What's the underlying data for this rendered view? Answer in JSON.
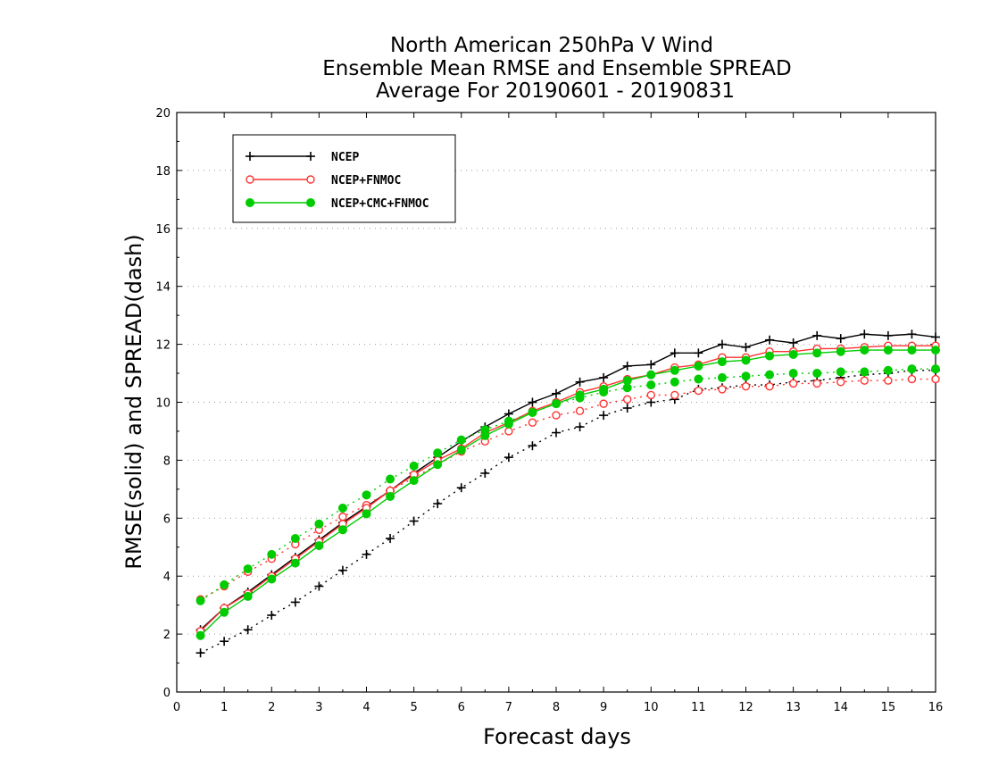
{
  "chart_data": {
    "type": "line",
    "title_lines": [
      "North American 250hPa V Wind",
      "Ensemble Mean RMSE and Ensemble SPREAD",
      "Average For 20190601 - 20190831"
    ],
    "xlabel": "Forecast days",
    "ylabel": "RMSE(solid) and SPREAD(dash)",
    "xlim": [
      0,
      16
    ],
    "ylim": [
      0,
      20
    ],
    "xticks": [
      "0",
      "1",
      "2",
      "3",
      "4",
      "5",
      "6",
      "7",
      "8",
      "9",
      "10",
      "11",
      "12",
      "13",
      "14",
      "15",
      "16"
    ],
    "yticks": [
      "0",
      "2",
      "4",
      "6",
      "8",
      "10",
      "12",
      "14",
      "16",
      "18",
      "20"
    ],
    "grid": "horizontal dotted",
    "legend_position": "top-left",
    "x": [
      0.5,
      1,
      1.5,
      2,
      2.5,
      3,
      3.5,
      4,
      4.5,
      5,
      5.5,
      6,
      6.5,
      7,
      7.5,
      8,
      8.5,
      9,
      9.5,
      10,
      10.5,
      11,
      11.5,
      12,
      12.5,
      13,
      13.5,
      14,
      14.5,
      15,
      15.5,
      16
    ],
    "series": [
      {
        "name": "NCEP",
        "color": "#000000",
        "marker": "plus",
        "rmse": [
          2.15,
          2.9,
          3.45,
          4.05,
          4.65,
          5.25,
          5.85,
          6.4,
          6.95,
          7.55,
          8.1,
          8.65,
          9.15,
          9.6,
          10.0,
          10.3,
          10.7,
          10.85,
          11.25,
          11.3,
          11.7,
          11.7,
          12.0,
          11.9,
          12.15,
          12.05,
          12.3,
          12.2,
          12.35,
          12.3,
          12.35,
          12.25
        ],
        "spread": [
          1.35,
          1.75,
          2.15,
          2.65,
          3.1,
          3.65,
          4.2,
          4.75,
          5.3,
          5.9,
          6.5,
          7.05,
          7.55,
          8.1,
          8.5,
          8.95,
          9.15,
          9.55,
          9.8,
          10.0,
          10.1,
          10.45,
          10.5,
          10.6,
          10.6,
          10.7,
          10.75,
          10.85,
          10.95,
          11.0,
          11.1,
          11.1
        ]
      },
      {
        "name": "NCEP+FNMOC",
        "color": "#ff3333",
        "marker": "open-circle",
        "rmse": [
          2.1,
          2.9,
          3.4,
          4.0,
          4.6,
          5.2,
          5.8,
          6.35,
          6.95,
          7.5,
          8.0,
          8.4,
          8.95,
          9.3,
          9.7,
          10.0,
          10.35,
          10.55,
          10.8,
          10.95,
          11.2,
          11.3,
          11.55,
          11.55,
          11.75,
          11.75,
          11.85,
          11.85,
          11.9,
          11.95,
          11.95,
          11.95
        ],
        "spread": [
          3.2,
          3.65,
          4.15,
          4.6,
          5.1,
          5.6,
          6.05,
          6.45,
          6.95,
          7.4,
          7.85,
          8.3,
          8.65,
          9.0,
          9.3,
          9.55,
          9.7,
          9.95,
          10.1,
          10.25,
          10.25,
          10.4,
          10.45,
          10.55,
          10.55,
          10.65,
          10.65,
          10.7,
          10.75,
          10.75,
          10.8,
          10.8
        ]
      },
      {
        "name": "NCEP+CMC+FNMOC",
        "color": "#00cc00",
        "marker": "filled-circle",
        "rmse": [
          1.95,
          2.75,
          3.3,
          3.9,
          4.45,
          5.05,
          5.6,
          6.15,
          6.75,
          7.3,
          7.85,
          8.35,
          8.85,
          9.25,
          9.65,
          9.95,
          10.25,
          10.45,
          10.75,
          10.95,
          11.1,
          11.25,
          11.4,
          11.45,
          11.6,
          11.65,
          11.7,
          11.75,
          11.8,
          11.8,
          11.8,
          11.8
        ],
        "spread": [
          3.15,
          3.7,
          4.25,
          4.75,
          5.3,
          5.8,
          6.35,
          6.8,
          7.35,
          7.8,
          8.25,
          8.7,
          9.05,
          9.35,
          9.65,
          9.95,
          10.15,
          10.35,
          10.5,
          10.6,
          10.7,
          10.8,
          10.85,
          10.9,
          10.95,
          11.0,
          11.0,
          11.05,
          11.05,
          11.1,
          11.15,
          11.15
        ]
      }
    ]
  }
}
